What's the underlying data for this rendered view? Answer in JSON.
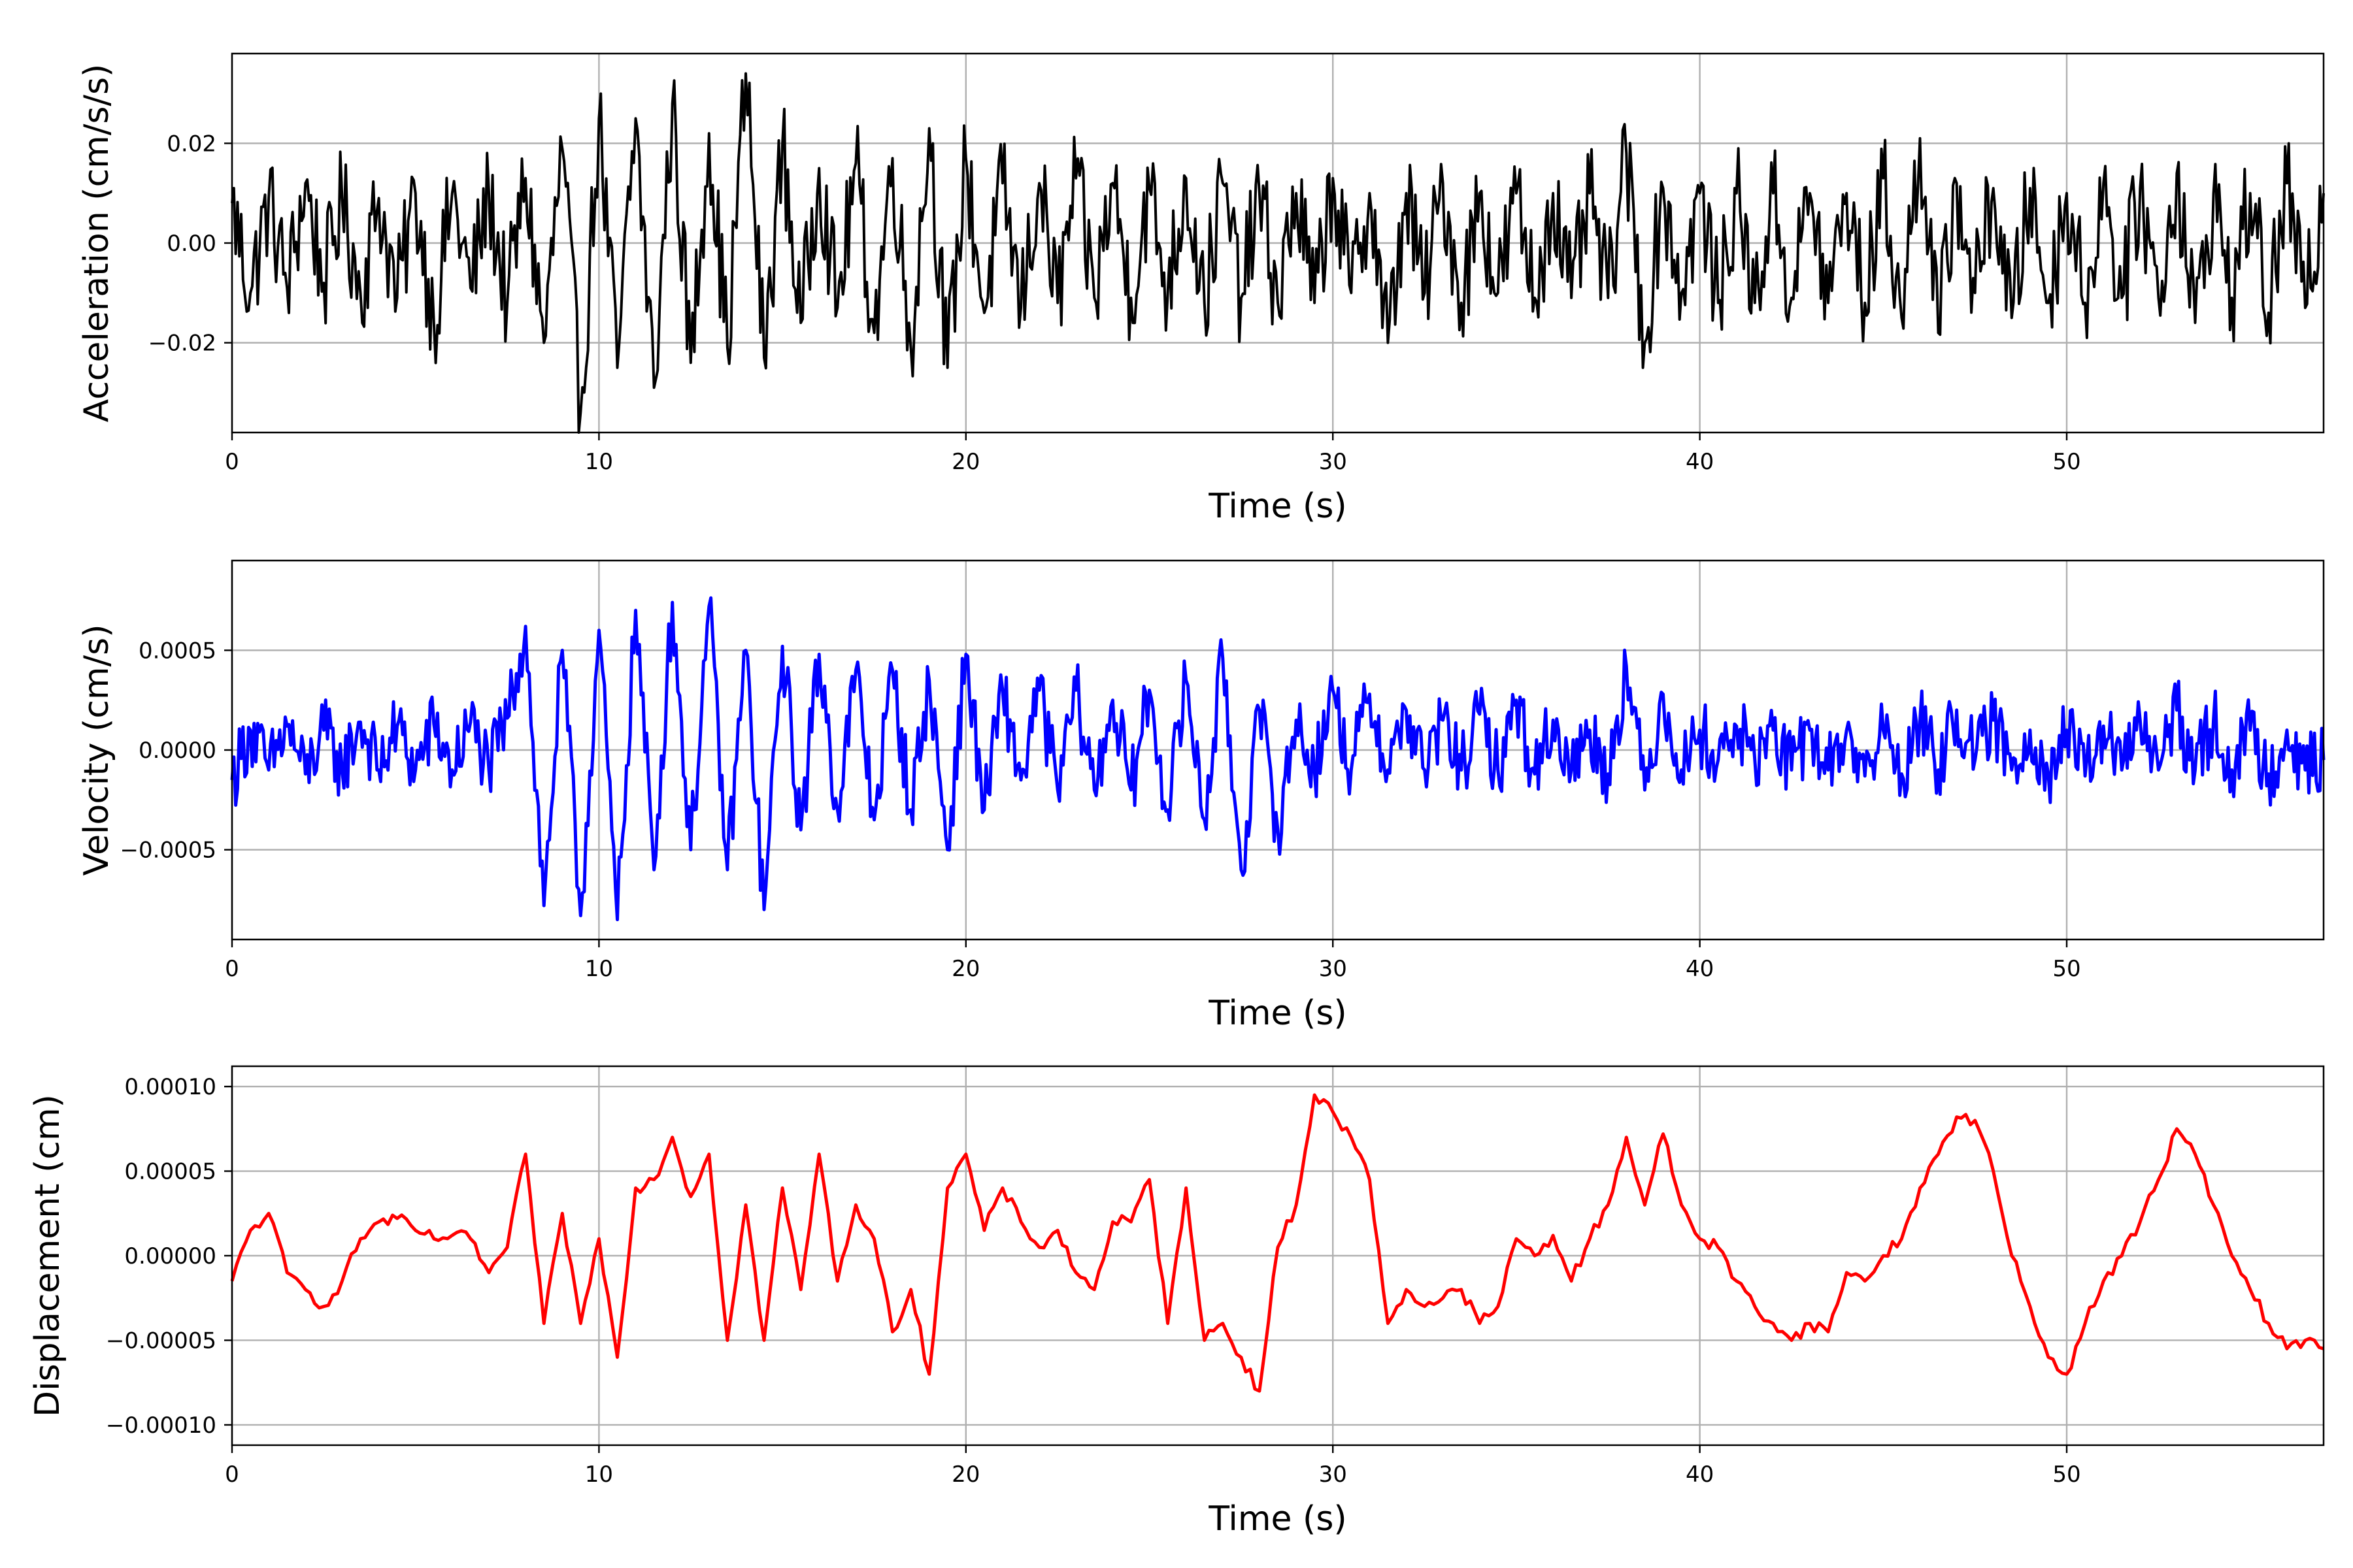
{
  "chart_data": [
    {
      "type": "line",
      "title": "",
      "xlabel": "Time (s)",
      "ylabel": "Acceleration (cm/s/s)",
      "xlim": [
        0,
        57
      ],
      "ylim": [
        -0.038,
        0.038
      ],
      "xticks": [
        0,
        10,
        20,
        30,
        40,
        50
      ],
      "xtick_labels": [
        "0",
        "10",
        "20",
        "30",
        "40",
        "50"
      ],
      "yticks": [
        -0.02,
        0.0,
        0.02
      ],
      "ytick_labels": [
        "−0.02",
        "0.00",
        "0.02"
      ],
      "grid": true,
      "color": "#000000",
      "series": [
        {
          "x": [
            0,
            0.5,
            1,
            1.5,
            2,
            2.5,
            3,
            3.5,
            4,
            4.5,
            5,
            5.5,
            6,
            6.5,
            7,
            7.5,
            8,
            8.5,
            9,
            9.5,
            10,
            10.5,
            11,
            11.5,
            12,
            12.5,
            13,
            13.5,
            14,
            14.5,
            15,
            15.5,
            16,
            16.5,
            17,
            17.5,
            18,
            18.5,
            19,
            19.5,
            20,
            20.5,
            21,
            21.5,
            22,
            22.5,
            23,
            23.5,
            24,
            24.5,
            25,
            25.5,
            26,
            26.5,
            27,
            27.5,
            28,
            28.5,
            29,
            29.5,
            30,
            30.5,
            31,
            31.5,
            32,
            32.5,
            33,
            33.5,
            34,
            34.5,
            35,
            35.5,
            36,
            36.5,
            37,
            37.5,
            38,
            38.5,
            39,
            39.5,
            40,
            40.5,
            41,
            41.5,
            42,
            42.5,
            43,
            43.5,
            44,
            44.5,
            45,
            45.5,
            46,
            46.5,
            47,
            47.5,
            48,
            48.5,
            49,
            49.5,
            50,
            50.5,
            51,
            51.5,
            52,
            52.5,
            53,
            53.5,
            54,
            54.5,
            55,
            55.5,
            56,
            56.5,
            57
          ],
          "y": [
            0.008,
            -0.01,
            0.009,
            -0.009,
            0.012,
            -0.008,
            0.009,
            -0.01,
            0.009,
            -0.011,
            0.01,
            -0.016,
            0.01,
            -0.009,
            0.01,
            -0.012,
            0.013,
            -0.02,
            0.019,
            -0.034,
            0.025,
            -0.025,
            0.025,
            -0.029,
            0.028,
            -0.024,
            0.022,
            -0.021,
            0.034,
            -0.023,
            0.02,
            -0.016,
            0.015,
            -0.013,
            0.016,
            -0.018,
            0.017,
            -0.021,
            0.023,
            -0.025,
            0.017,
            -0.014,
            0.012,
            -0.013,
            0.012,
            -0.012,
            0.013,
            -0.011,
            0.012,
            -0.011,
            0.011,
            -0.01,
            0.013,
            -0.012,
            0.012,
            -0.011,
            0.01,
            -0.012,
            0.01,
            -0.012,
            0.013,
            -0.01,
            0.01,
            -0.02,
            0.01,
            -0.01,
            0.012,
            -0.012,
            0.01,
            -0.01,
            0.01,
            -0.011,
            0.01,
            -0.011,
            0.01,
            -0.011,
            0.018,
            -0.02,
            0.011,
            -0.01,
            0.01,
            -0.012,
            0.01,
            -0.012,
            0.01,
            -0.011,
            0.01,
            -0.012,
            0.01,
            -0.012,
            0.013,
            -0.015,
            0.021,
            -0.018,
            0.012,
            -0.01,
            0.011,
            -0.015,
            0.011,
            -0.012,
            0.01,
            -0.012,
            0.012,
            -0.011,
            0.011,
            -0.011,
            0.014,
            -0.016,
            0.01,
            -0.011,
            0.01,
            -0.014,
            0.012,
            -0.013,
            0.01
          ]
        }
      ]
    },
    {
      "type": "line",
      "title": "",
      "xlabel": "Time (s)",
      "ylabel": "Velocity (cm/s)",
      "xlim": [
        0,
        57
      ],
      "ylim": [
        -0.00095,
        0.00095
      ],
      "xticks": [
        0,
        10,
        20,
        30,
        40,
        50
      ],
      "xtick_labels": [
        "0",
        "10",
        "20",
        "30",
        "40",
        "50"
      ],
      "yticks": [
        -0.0005,
        0.0,
        0.0005
      ],
      "ytick_labels": [
        "−0.0005",
        "0.0000",
        "0.0005"
      ],
      "grid": true,
      "color": "#0000ff",
      "series": [
        {
          "x": [
            0,
            0.5,
            1,
            1.5,
            2,
            2.5,
            3,
            3.5,
            4,
            4.5,
            5,
            5.5,
            6,
            6.5,
            7,
            7.5,
            8,
            8.5,
            9,
            9.5,
            10,
            10.5,
            11,
            11.5,
            12,
            12.5,
            13,
            13.5,
            14,
            14.5,
            15,
            15.5,
            16,
            16.5,
            17,
            17.5,
            18,
            18.5,
            19,
            19.5,
            20,
            20.5,
            21,
            21.5,
            22,
            22.5,
            23,
            23.5,
            24,
            24.5,
            25,
            25.5,
            26,
            26.5,
            27,
            27.5,
            28,
            28.5,
            29,
            29.5,
            30,
            30.5,
            31,
            31.5,
            32,
            32.5,
            33,
            33.5,
            34,
            34.5,
            35,
            35.5,
            36,
            36.5,
            37,
            37.5,
            38,
            38.5,
            39,
            39.5,
            40,
            40.5,
            41,
            41.5,
            42,
            42.5,
            43,
            43.5,
            44,
            44.5,
            45,
            45.5,
            46,
            46.5,
            47,
            47.5,
            48,
            48.5,
            49,
            49.5,
            50,
            50.5,
            51,
            51.5,
            52,
            52.5,
            53,
            53.5,
            54,
            54.5,
            55,
            55.5,
            56,
            56.5,
            57
          ],
          "y": [
            -0.00015,
            0.0001,
            -0.0001,
            0.00012,
            -0.00012,
            0.0001,
            -0.0001,
            0.00014,
            -0.0001,
            0.00012,
            -0.0001,
            0.00013,
            -0.0001,
            0.00014,
            -0.0001,
            0.00016,
            0.00062,
            -0.00078,
            0.0005,
            -0.00083,
            0.0006,
            -0.00085,
            0.0007,
            -0.0006,
            0.00074,
            -0.0005,
            0.00072,
            -0.0006,
            0.0005,
            -0.0008,
            0.00052,
            -0.0004,
            0.00048,
            -0.0003,
            0.0004,
            -0.00035,
            0.0004,
            -0.0003,
            0.00035,
            -0.0005,
            0.00048,
            -0.0003,
            0.0003,
            -0.00015,
            0.0003,
            -0.0002,
            0.0003,
            -0.0002,
            0.00025,
            -0.0002,
            0.0003,
            -0.0003,
            0.00035,
            -0.00035,
            0.00046,
            -0.0006,
            0.0002,
            -0.0004,
            0.00015,
            -0.0001,
            0.0003,
            -0.0001,
            0.00028,
            -0.0001,
            0.0002,
            -0.0001,
            0.00015,
            -0.0001,
            0.00018,
            -0.0001,
            0.00025,
            -0.00012,
            0.00015,
            -0.0001,
            0.0001,
            -0.00012,
            0.00042,
            -0.0002,
            0.00028,
            -0.0001,
            0.0001,
            -5e-05,
            0.00012,
            -5e-05,
            0.0001,
            -0.0001,
            0.0001,
            -0.0001,
            0.0001,
            -0.00013,
            0.0001,
            -0.00012,
            0.00015,
            -0.0001,
            0.0002,
            -5e-05,
            0.00015,
            -0.0001,
            0.0001,
            -0.00012,
            0.0001,
            -0.00013,
            0.00012,
            -0.0001,
            0.00015,
            -0.0001,
            0.0002,
            -0.0001,
            0.00015,
            -0.0001,
            0.0001,
            -0.00012,
            0.0001,
            -0.0001,
            -5e-05
          ]
        }
      ]
    },
    {
      "type": "line",
      "title": "",
      "xlabel": "Time (s)",
      "ylabel": "Displacement (cm)",
      "xlim": [
        0,
        57
      ],
      "ylim": [
        -0.000112,
        0.000112
      ],
      "xticks": [
        0,
        10,
        20,
        30,
        40,
        50
      ],
      "xtick_labels": [
        "0",
        "10",
        "20",
        "30",
        "40",
        "50"
      ],
      "yticks": [
        -0.0001,
        -5e-05,
        0.0,
        5e-05,
        0.0001
      ],
      "ytick_labels": [
        "−0.00010",
        "−0.00005",
        "0.00000",
        "0.00005",
        "0.00010"
      ],
      "grid": true,
      "color": "#ff0000",
      "series": [
        {
          "x": [
            0,
            0.5,
            1,
            1.5,
            2,
            2.5,
            3,
            3.5,
            4,
            4.5,
            5,
            5.5,
            6,
            6.5,
            7,
            7.5,
            8,
            8.5,
            9,
            9.5,
            10,
            10.5,
            11,
            11.5,
            12,
            12.5,
            13,
            13.5,
            14,
            14.5,
            15,
            15.5,
            16,
            16.5,
            17,
            17.5,
            18,
            18.5,
            19,
            19.5,
            20,
            20.5,
            21,
            21.5,
            22,
            22.5,
            23,
            23.5,
            24,
            24.5,
            25,
            25.5,
            26,
            26.5,
            27,
            27.5,
            28,
            28.5,
            29,
            29.5,
            30,
            30.5,
            31,
            31.5,
            32,
            32.5,
            33,
            33.5,
            34,
            34.5,
            35,
            35.5,
            36,
            36.5,
            37,
            37.5,
            38,
            38.5,
            39,
            39.5,
            40,
            40.5,
            41,
            41.5,
            42,
            42.5,
            43,
            43.5,
            44,
            44.5,
            45,
            45.5,
            46,
            46.5,
            47,
            47.5,
            48,
            48.5,
            49,
            49.5,
            50,
            50.5,
            51,
            51.5,
            52,
            52.5,
            53,
            53.5,
            54,
            54.5,
            55,
            55.5,
            56,
            56.5,
            57
          ],
          "y": [
            -1.5e-05,
            1.5e-05,
            2.5e-05,
            -1e-05,
            -2e-05,
            -3e-05,
            -1.5e-05,
            1e-05,
            2e-05,
            2.2e-05,
            1.5e-05,
            1e-05,
            1.2e-05,
            1e-05,
            -1e-05,
            5e-06,
            6e-05,
            -4e-05,
            2.5e-05,
            -4e-05,
            1e-05,
            -6e-05,
            4e-05,
            4.5e-05,
            7e-05,
            3.5e-05,
            6e-05,
            -5e-05,
            3e-05,
            -5e-05,
            4e-05,
            -2e-05,
            6e-05,
            -1.5e-05,
            3e-05,
            1e-05,
            -4.5e-05,
            -2e-05,
            -7e-05,
            4e-05,
            6e-05,
            1.5e-05,
            4e-05,
            2e-05,
            5e-06,
            1.5e-05,
            -1e-05,
            -2e-05,
            2e-05,
            2e-05,
            4.5e-05,
            -4e-05,
            4e-05,
            -5e-05,
            -4e-05,
            -6e-05,
            -8e-05,
            5e-06,
            3e-05,
            9.5e-05,
            8.5e-05,
            7e-05,
            4.5e-05,
            -4e-05,
            -2e-05,
            -3e-05,
            -2.5e-05,
            -2e-05,
            -4e-05,
            -3e-05,
            1e-05,
            0.0,
            1.2e-05,
            -1.5e-05,
            1e-05,
            3e-05,
            7e-05,
            3e-05,
            7.2e-05,
            3e-05,
            1e-05,
            5e-06,
            -1.5e-05,
            -3e-05,
            -4e-05,
            -5e-05,
            -4e-05,
            -4.5e-05,
            -1e-05,
            -1.5e-05,
            0.0,
            1e-05,
            4e-05,
            6e-05,
            8.2e-05,
            8e-05,
            5e-05,
            0.0,
            -3e-05,
            -6e-05,
            -7e-05,
            -4e-05,
            -1.5e-05,
            0.0,
            2e-05,
            4.5e-05,
            7.5e-05,
            6e-05,
            3e-05,
            0.0,
            -2e-05,
            -4e-05,
            -5.5e-05,
            -5e-05,
            -5.5e-05
          ]
        }
      ]
    }
  ]
}
